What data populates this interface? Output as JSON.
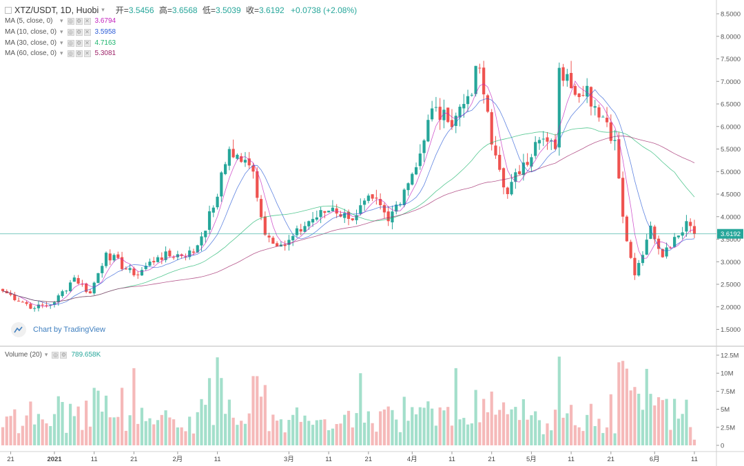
{
  "header": {
    "symbol": "XTZ/USDT, 1D, Huobi",
    "open_label": "开=",
    "open": "3.5456",
    "high_label": "高=",
    "high": "3.6568",
    "low_label": "低=",
    "low": "3.5039",
    "close_label": "收=",
    "close": "3.6192",
    "change": "+0.0738 (+2.08%)"
  },
  "indicators": [
    {
      "name": "MA (5, close, 0)",
      "value": "3.6794",
      "color": "#c21fbc"
    },
    {
      "name": "MA (10, close, 0)",
      "value": "3.5958",
      "color": "#2a5bd7"
    },
    {
      "name": "MA (30, close, 0)",
      "value": "4.7163",
      "color": "#19b46b"
    },
    {
      "name": "MA (60, close, 0)",
      "value": "5.3081",
      "color": "#9c1f66"
    }
  ],
  "volume_indicator": {
    "name": "Volume (20)",
    "value": "789.658K"
  },
  "branding": "Chart by TradingView",
  "colors": {
    "up": "#26a69a",
    "down": "#ef5350",
    "up_vol": "#a3dfcb",
    "down_vol": "#f5b9b9",
    "last_price": "#26a69a",
    "grid": "#e9e9e9"
  },
  "chart_data": {
    "type": "candlestick",
    "title": "XTZ/USDT, 1D, Huobi",
    "price_axis": {
      "range": [
        1.0,
        8.75
      ],
      "ticks": [
        "1.5000",
        "2.0000",
        "2.5000",
        "3.0000",
        "3.5000",
        "4.0000",
        "4.5000",
        "5.0000",
        "5.5000",
        "6.0000",
        "6.5000",
        "7.0000",
        "7.5000",
        "8.0000",
        "8.5000"
      ]
    },
    "volume_axis": {
      "range": [
        0,
        13
      ],
      "unit": "M",
      "ticks": [
        "0",
        "2.5M",
        "5M",
        "7.5M",
        "10M",
        "12.5M"
      ]
    },
    "time_axis": {
      "labels": [
        "21",
        "2021",
        "11",
        "21",
        "2月",
        "11",
        "3月",
        "11",
        "21",
        "4月",
        "11",
        "21",
        "5月",
        "11",
        "21",
        "6月",
        "11"
      ]
    },
    "last_price": "3.6192",
    "series": [
      {
        "name": "XTZ/USDT",
        "key_points": [
          {
            "date": "2020-12-19",
            "close": 2.35
          },
          {
            "date": "2020-12-27",
            "close": 1.97
          },
          {
            "date": "2021-01-01",
            "close": 2.1
          },
          {
            "date": "2021-01-06",
            "close": 2.65
          },
          {
            "date": "2021-01-10",
            "close": 2.3
          },
          {
            "date": "2021-01-14",
            "close": 3.2
          },
          {
            "date": "2021-01-21",
            "close": 2.7
          },
          {
            "date": "2021-01-27",
            "close": 3.1
          },
          {
            "date": "2021-02-05",
            "close": 3.2
          },
          {
            "date": "2021-02-10",
            "close": 4.2
          },
          {
            "date": "2021-02-14",
            "close": 5.5
          },
          {
            "date": "2021-02-20",
            "close": 5.0
          },
          {
            "date": "2021-02-23",
            "close": 3.6
          },
          {
            "date": "2021-02-28",
            "close": 3.35
          },
          {
            "date": "2021-03-06",
            "close": 3.9
          },
          {
            "date": "2021-03-12",
            "close": 4.2
          },
          {
            "date": "2021-03-16",
            "close": 3.95
          },
          {
            "date": "2021-03-22",
            "close": 4.4
          },
          {
            "date": "2021-03-26",
            "close": 3.9
          },
          {
            "date": "2021-03-30",
            "close": 4.6
          },
          {
            "date": "2021-04-03",
            "close": 5.4
          },
          {
            "date": "2021-04-06",
            "close": 6.4
          },
          {
            "date": "2021-04-10",
            "close": 6.1
          },
          {
            "date": "2021-04-14",
            "close": 6.5
          },
          {
            "date": "2021-04-18",
            "close": 7.3
          },
          {
            "date": "2021-04-21",
            "close": 5.6
          },
          {
            "date": "2021-04-25",
            "close": 4.5
          },
          {
            "date": "2021-04-29",
            "close": 5.2
          },
          {
            "date": "2021-05-03",
            "close": 5.7
          },
          {
            "date": "2021-05-07",
            "close": 5.5
          },
          {
            "date": "2021-05-08",
            "close": 7.3
          },
          {
            "date": "2021-05-11",
            "close": 6.85
          },
          {
            "date": "2021-05-15",
            "close": 6.9
          },
          {
            "date": "2021-05-18",
            "close": 6.2
          },
          {
            "date": "2021-05-22",
            "close": 5.7
          },
          {
            "date": "2021-05-24",
            "close": 4.0
          },
          {
            "date": "2021-05-27",
            "close": 2.7
          },
          {
            "date": "2021-05-31",
            "close": 3.8
          },
          {
            "date": "2021-06-03",
            "close": 3.1
          },
          {
            "date": "2021-06-06",
            "close": 3.55
          },
          {
            "date": "2021-06-09",
            "close": 3.9
          },
          {
            "date": "2021-06-11",
            "close": 3.62
          }
        ]
      }
    ]
  }
}
